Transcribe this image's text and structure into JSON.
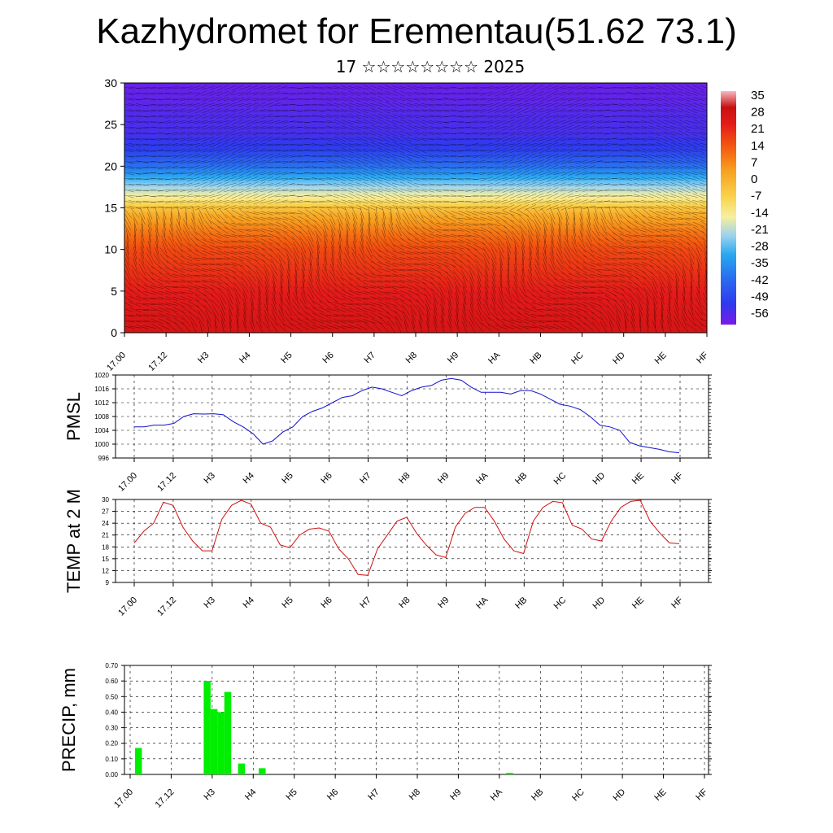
{
  "title": "Kazhydromet for Erementau(51.62 73.1)",
  "subtitle": "17 ☆☆☆☆☆☆☆☆ 2025",
  "x_ticks_top": [
    "17.00",
    "17.12",
    "H3",
    "H4",
    "H5",
    "H6",
    "H7",
    "H8",
    "H9",
    "HA",
    "HB",
    "HC",
    "HD",
    "HE",
    "HF"
  ],
  "x_ticks": [
    "17.00",
    "17.12",
    "H3",
    "H4",
    "H5",
    "H6",
    "H7",
    "H8",
    "H9",
    "HA",
    "HB",
    "HC",
    "HD",
    "HE",
    "HF"
  ],
  "colors": {
    "pmsl_line": "#1010d0",
    "temp_line": "#d01010",
    "precip_bar": "#00ee00"
  },
  "chart_data": [
    {
      "type": "heatmap",
      "title": "",
      "ylim": [
        0,
        30
      ],
      "yticks": [
        "0",
        "5",
        "10",
        "15",
        "20",
        "25",
        "30"
      ],
      "colorbar": {
        "labels": [
          "35",
          "28",
          "21",
          "14",
          "7",
          "0",
          "-7",
          "-14",
          "-21",
          "-28",
          "-35",
          "-42",
          "-49",
          "-56"
        ],
        "range": [
          -60,
          38
        ]
      },
      "temperature_profile": {
        "height": [
          0,
          5,
          10,
          12,
          14,
          15,
          16,
          18,
          20,
          22,
          24,
          26,
          28,
          30
        ],
        "temperature": [
          28,
          24,
          17,
          11,
          3,
          -3,
          -12,
          -25,
          -40,
          -50,
          -54,
          -55,
          -57,
          -58
        ]
      },
      "wind_barbs": true
    },
    {
      "type": "line",
      "ylabel": "PMSL",
      "ylim": [
        996,
        1020
      ],
      "yticks": [
        "1020",
        "1016",
        "1012",
        "1008",
        "1004",
        "1000",
        "996"
      ],
      "series": [
        {
          "values": [
            1005,
            1005,
            1005.5,
            1005.5,
            1006,
            1008,
            1008.8,
            1008.7,
            1008.8,
            1008.5,
            1006.5,
            1005,
            1003,
            1000,
            1001,
            1003.5,
            1005,
            1008,
            1009.5,
            1010.5,
            1012,
            1013.5,
            1014,
            1015.5,
            1016.5,
            1016,
            1015,
            1014,
            1015.5,
            1016.5,
            1017,
            1018.5,
            1019,
            1018.5,
            1016.5,
            1015,
            1015,
            1015,
            1014.5,
            1015.5,
            1015.5,
            1014.5,
            1013,
            1011.5,
            1011,
            1010,
            1008,
            1005.5,
            1005,
            1004,
            1000.5,
            999.5,
            999,
            998.5,
            997.8,
            997.5
          ]
        }
      ]
    },
    {
      "type": "line",
      "ylabel": "TEMP at 2 M",
      "ylim": [
        9,
        30
      ],
      "yticks": [
        "30",
        "27",
        "24",
        "21",
        "18",
        "15",
        "12",
        "9"
      ],
      "series": [
        {
          "values": [
            19,
            22,
            24,
            29.3,
            28.5,
            23,
            19.5,
            17,
            17,
            25,
            28.5,
            29.8,
            28.8,
            24,
            23,
            18.5,
            17.8,
            21,
            22.5,
            22.8,
            22,
            17.5,
            15,
            11,
            10.8,
            17.5,
            21,
            24.5,
            25.5,
            21.5,
            18.5,
            16,
            15.3,
            23,
            26.5,
            28,
            28,
            24.5,
            20,
            17,
            16.3,
            24.5,
            28,
            29.5,
            29.2,
            23.5,
            22.5,
            20,
            19.5,
            24.5,
            28,
            29.5,
            29.8,
            24.5,
            21.5,
            19,
            18.8
          ]
        }
      ]
    },
    {
      "type": "bar",
      "ylabel": "PRECIP, mm",
      "ylim": [
        0,
        0.7
      ],
      "yticks": [
        "0.70",
        "0.60",
        "0.50",
        "0.40",
        "0.30",
        "0.20",
        "0.10",
        "0.00"
      ],
      "values": [
        0,
        0,
        0.17,
        0,
        0,
        0,
        0,
        0,
        0,
        0,
        0,
        0,
        0.6,
        0.42,
        0.4,
        0.53,
        0,
        0.07,
        0,
        0,
        0.04,
        0,
        0,
        0,
        0,
        0,
        0,
        0,
        0,
        0,
        0,
        0,
        0,
        0,
        0,
        0,
        0,
        0,
        0,
        0,
        0,
        0,
        0,
        0,
        0,
        0,
        0,
        0,
        0,
        0,
        0,
        0,
        0,
        0,
        0,
        0,
        0.01,
        0,
        0,
        0,
        0,
        0,
        0,
        0,
        0,
        0,
        0,
        0,
        0
      ]
    }
  ]
}
